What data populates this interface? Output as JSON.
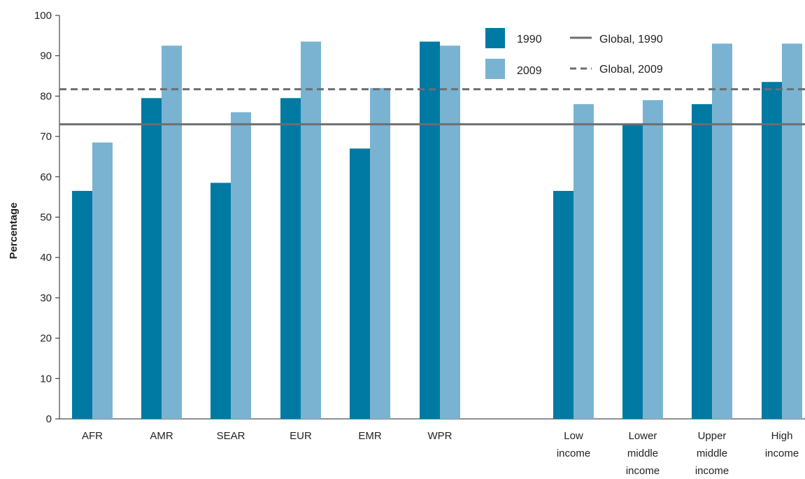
{
  "chart_data": {
    "type": "bar",
    "title": "",
    "xlabel": "",
    "ylabel": "Percentage",
    "ylim": [
      0,
      100
    ],
    "yticks": [
      0,
      10,
      20,
      30,
      40,
      50,
      60,
      70,
      80,
      90,
      100
    ],
    "grid": false,
    "legend_position": "top-right",
    "categories": [
      [
        "AFR"
      ],
      [
        "AMR"
      ],
      [
        "SEAR"
      ],
      [
        "EUR"
      ],
      [
        "EMR"
      ],
      [
        "WPR"
      ],
      [
        "Low",
        "income"
      ],
      [
        "Lower",
        "middle",
        "income"
      ],
      [
        "Upper",
        "middle",
        "income"
      ],
      [
        "High",
        "income"
      ]
    ],
    "series": [
      {
        "name": "1990",
        "color": "#007aa3",
        "values": [
          56.5,
          79.5,
          58.5,
          79.5,
          67,
          93.5,
          56.5,
          73,
          78,
          83.5
        ]
      },
      {
        "name": "2009",
        "color": "#7ab3d1",
        "values": [
          68.5,
          92.5,
          76,
          93.5,
          82,
          92.5,
          78,
          79,
          93,
          93
        ]
      }
    ],
    "reference_lines": [
      {
        "name": "Global, 1990",
        "value": 73,
        "style": "solid",
        "color": "#6d6e71"
      },
      {
        "name": "Global, 2009",
        "value": 81.7,
        "style": "dashed",
        "color": "#6d6e71"
      }
    ]
  }
}
